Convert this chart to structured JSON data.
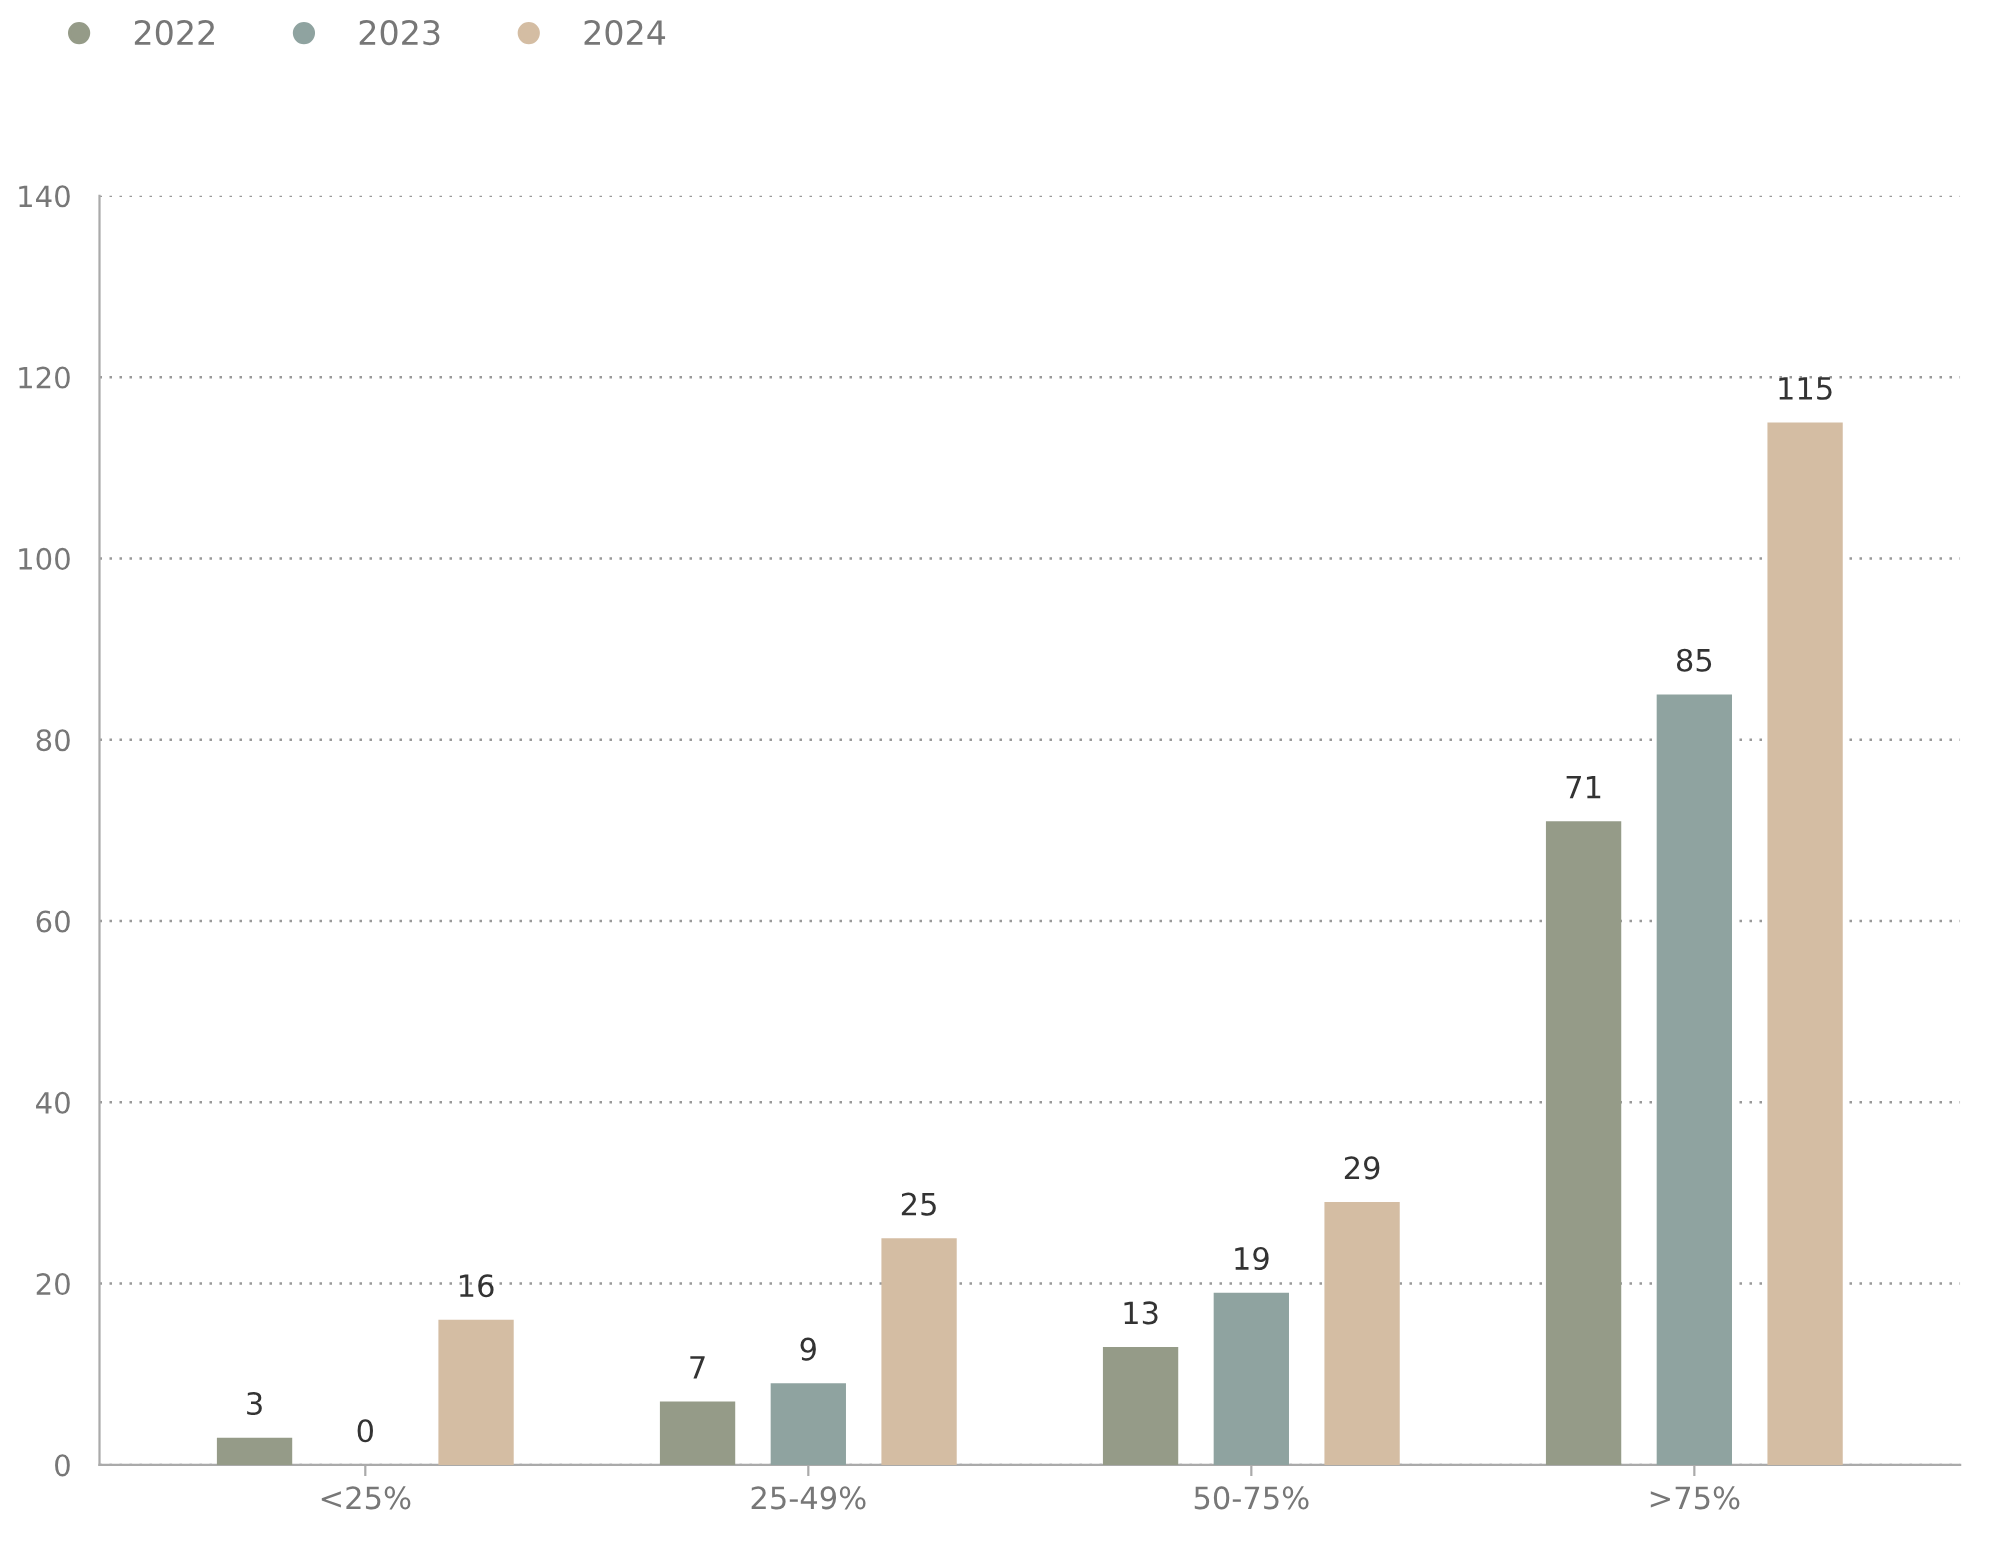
{
  "chart_data": {
    "type": "bar",
    "categories": [
      "<25%",
      "25-49%",
      "50-75%",
      ">75%"
    ],
    "series": [
      {
        "name": "2022",
        "color": "#959b88",
        "values": [
          3,
          7,
          13,
          71
        ]
      },
      {
        "name": "2023",
        "color": "#8fa3a0",
        "values": [
          0,
          9,
          19,
          85
        ]
      },
      {
        "name": "2024",
        "color": "#d4bda3",
        "values": [
          16,
          25,
          29,
          115
        ]
      }
    ],
    "ylim": [
      0,
      140
    ],
    "yticks": [
      0,
      20,
      40,
      60,
      80,
      100,
      120,
      140
    ],
    "grid": "y",
    "legend": "top left",
    "data_labels": true
  }
}
